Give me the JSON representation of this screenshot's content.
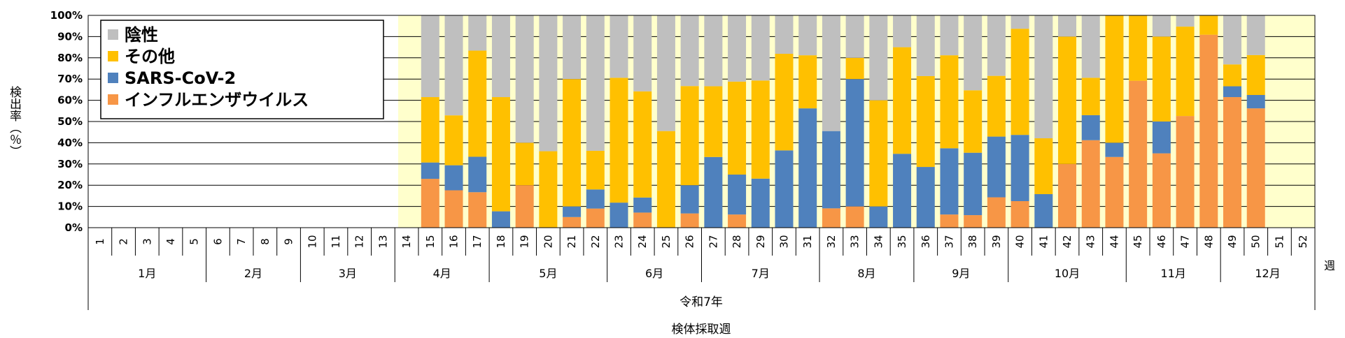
{
  "chart_data": {
    "type": "bar",
    "stacked": true,
    "ylabel": "検出率（％）",
    "ylim": [
      0,
      100
    ],
    "yticks": [
      "0%",
      "10%",
      "20%",
      "30%",
      "40%",
      "50%",
      "60%",
      "70%",
      "80%",
      "90%",
      "100%"
    ],
    "grid": true,
    "legend_position": "top-left",
    "x_caption_year": "令和7年",
    "x_caption": "検体採取週",
    "week_axis_label": "週",
    "weeks": [
      "1",
      "2",
      "3",
      "4",
      "5",
      "6",
      "7",
      "8",
      "9",
      "10",
      "11",
      "12",
      "13",
      "14",
      "15",
      "16",
      "17",
      "18",
      "19",
      "20",
      "21",
      "22",
      "23",
      "24",
      "25",
      "26",
      "27",
      "28",
      "29",
      "30",
      "31",
      "32",
      "33",
      "34",
      "35",
      "36",
      "37",
      "38",
      "39",
      "40",
      "41",
      "42",
      "43",
      "44",
      "45",
      "46",
      "47",
      "48",
      "49",
      "50",
      "51",
      "52"
    ],
    "months": [
      {
        "label": "1月",
        "from": 1,
        "to": 5
      },
      {
        "label": "2月",
        "from": 6,
        "to": 9
      },
      {
        "label": "3月",
        "from": 10,
        "to": 13
      },
      {
        "label": "4月",
        "from": 14,
        "to": 17
      },
      {
        "label": "5月",
        "from": 18,
        "to": 22
      },
      {
        "label": "6月",
        "from": 23,
        "to": 26
      },
      {
        "label": "7月",
        "from": 27,
        "to": 31
      },
      {
        "label": "8月",
        "from": 32,
        "to": 35
      },
      {
        "label": "9月",
        "from": 36,
        "to": 39
      },
      {
        "label": "10月",
        "from": 40,
        "to": 44
      },
      {
        "label": "11月",
        "from": 45,
        "to": 48
      },
      {
        "label": "12月",
        "from": 49,
        "to": 52
      }
    ],
    "series": [
      {
        "name": "インフルエンザウイルス",
        "color": "#f79646",
        "values": [
          null,
          null,
          null,
          null,
          null,
          null,
          null,
          null,
          null,
          null,
          null,
          null,
          null,
          null,
          23,
          17.6,
          16.7,
          0,
          20,
          0,
          5,
          9,
          0,
          7.1,
          0,
          6.7,
          0,
          6.2,
          0,
          0,
          0,
          9.1,
          10,
          0,
          0,
          0,
          6.2,
          5.9,
          14.3,
          12.5,
          0,
          30,
          41.2,
          33.3,
          69.2,
          35,
          52.6,
          90.9,
          61.5,
          56.2,
          null,
          null
        ]
      },
      {
        "name": "SARS-CoV-2",
        "color": "#4f81bd",
        "values": [
          null,
          null,
          null,
          null,
          null,
          null,
          null,
          null,
          null,
          null,
          null,
          null,
          null,
          null,
          7.7,
          11.8,
          16.7,
          7.7,
          0,
          0,
          5,
          9,
          11.8,
          7.1,
          0,
          13.3,
          33.3,
          18.8,
          23.1,
          36.4,
          56.2,
          36.4,
          60,
          10,
          34.8,
          28.6,
          31.2,
          29.4,
          28.6,
          31.2,
          15.8,
          0,
          11.8,
          6.7,
          0,
          15,
          0,
          0,
          5.1,
          6.3,
          null,
          null
        ]
      },
      {
        "name": "その他",
        "color": "#ffc000",
        "values": [
          null,
          null,
          null,
          null,
          null,
          null,
          null,
          null,
          null,
          null,
          null,
          null,
          null,
          null,
          30.8,
          23.5,
          50,
          53.8,
          20,
          36,
          60,
          18.2,
          58.8,
          50,
          45.5,
          46.7,
          33.3,
          43.8,
          46.2,
          45.5,
          25,
          0,
          10,
          50,
          50.2,
          42.8,
          43.8,
          29.4,
          28.6,
          50,
          26.3,
          60,
          17.6,
          60,
          30.8,
          40,
          42.1,
          9.1,
          10.3,
          18.8,
          null,
          null
        ]
      },
      {
        "name": "陰性",
        "color": "#bfbfbf",
        "values": [
          null,
          null,
          null,
          null,
          null,
          null,
          null,
          null,
          null,
          null,
          null,
          null,
          null,
          null,
          38.5,
          47.1,
          16.6,
          38.5,
          60,
          64,
          30,
          63.8,
          29.4,
          35.8,
          54.5,
          33.3,
          33.4,
          31.2,
          30.7,
          18.1,
          18.8,
          54.5,
          20,
          40,
          15,
          28.6,
          18.8,
          35.3,
          28.5,
          6.3,
          57.9,
          10,
          29.4,
          0,
          0,
          10,
          5.3,
          0,
          23.1,
          18.7,
          null,
          null
        ]
      }
    ],
    "legend_order": [
      "陰性",
      "その他",
      "SARS-CoV-2",
      "インフルエンザウイルス"
    ]
  }
}
